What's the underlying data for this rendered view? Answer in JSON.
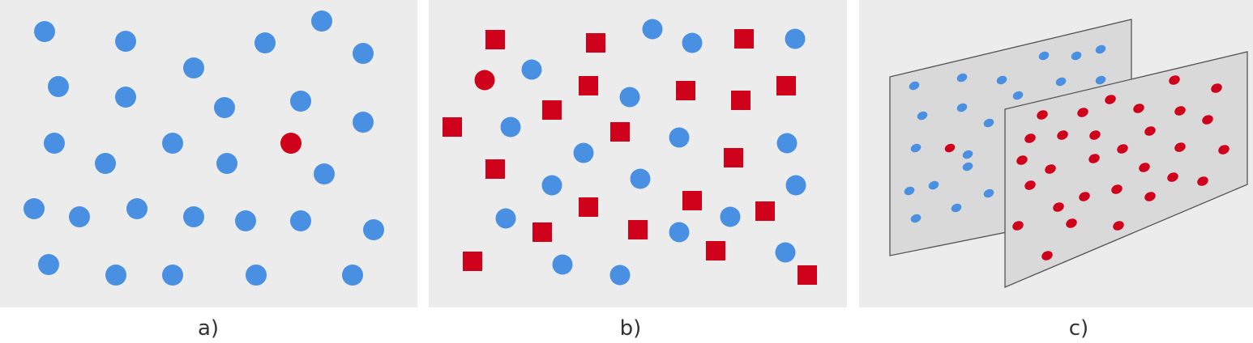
{
  "colors": {
    "blue": "#4a90e2",
    "red": "#d0021b",
    "panel": "#ececec",
    "plane": "#d9d9d9"
  },
  "panel_a": {
    "caption": "a)"
  },
  "panel_b": {
    "caption": "b)"
  },
  "panel_c": {
    "caption": "c)"
  }
}
